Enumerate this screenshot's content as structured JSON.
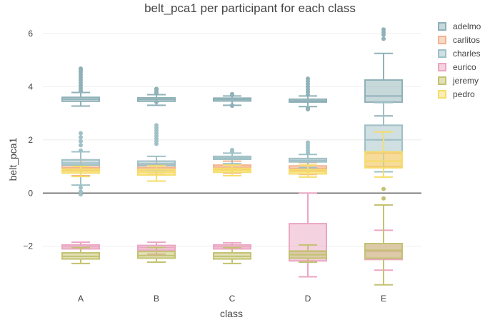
{
  "chart_data": {
    "type": "box",
    "title": "belt_pca1 per participant for each class",
    "xlabel": "class",
    "ylabel": "belt_pca1",
    "categories": [
      "A",
      "B",
      "C",
      "D",
      "E"
    ],
    "ylim": [
      -3.7,
      6.4
    ],
    "yticks": [
      -2,
      0,
      2,
      4,
      6
    ],
    "ytick_labels": [
      "−2",
      "0",
      "2",
      "4",
      "6"
    ],
    "grid": true,
    "zero_line": true,
    "legend_position": "top-right",
    "series": [
      {
        "name": "adelmo",
        "color": "#8fb1b8",
        "boxes": [
          {
            "category": "A",
            "q1": 3.45,
            "median": 3.53,
            "q3": 3.6,
            "lower_whisker": 3.27,
            "upper_whisker": 3.78,
            "outliers": [
              3.85,
              3.95,
              4.05,
              4.15,
              4.25,
              4.35,
              4.45,
              4.55,
              4.62,
              4.68
            ]
          },
          {
            "category": "B",
            "q1": 3.45,
            "median": 3.52,
            "q3": 3.58,
            "lower_whisker": 3.3,
            "upper_whisker": 3.7,
            "outliers": [
              3.75,
              3.8,
              3.88,
              3.92,
              3.42
            ]
          },
          {
            "category": "C",
            "q1": 3.46,
            "median": 3.52,
            "q3": 3.57,
            "lower_whisker": 3.3,
            "upper_whisker": 3.65,
            "outliers": [
              3.68,
              3.72,
              3.3,
              3.28
            ]
          },
          {
            "category": "D",
            "q1": 3.42,
            "median": 3.47,
            "q3": 3.53,
            "lower_whisker": 3.25,
            "upper_whisker": 3.65,
            "outliers": [
              3.7,
              3.8,
              3.9,
              4.0,
              4.1,
              4.2,
              4.3,
              3.2,
              3.15
            ]
          },
          {
            "category": "E",
            "q1": 3.42,
            "median": 3.65,
            "q3": 4.25,
            "lower_whisker": 2.9,
            "upper_whisker": 5.25,
            "outliers": [
              5.8,
              5.95,
              6.05,
              6.15
            ]
          }
        ]
      },
      {
        "name": "carlitos",
        "color": "#f2b38f",
        "boxes": [
          {
            "category": "A",
            "q1": 0.85,
            "median": 0.95,
            "q3": 1.05,
            "lower_whisker": 0.65,
            "upper_whisker": 1.25,
            "outliers": []
          },
          {
            "category": "B",
            "q1": 0.85,
            "median": 0.95,
            "q3": 1.05,
            "lower_whisker": 0.7,
            "upper_whisker": 1.2,
            "outliers": []
          },
          {
            "category": "C",
            "q1": 0.9,
            "median": 0.97,
            "q3": 1.05,
            "lower_whisker": 0.75,
            "upper_whisker": 1.2,
            "outliers": []
          },
          {
            "category": "D",
            "q1": 0.85,
            "median": 0.93,
            "q3": 1.02,
            "lower_whisker": 0.7,
            "upper_whisker": 1.15,
            "outliers": []
          },
          {
            "category": "E",
            "q1": 1.0,
            "median": 1.2,
            "q3": 1.5,
            "lower_whisker": 0.8,
            "upper_whisker": 2.0,
            "outliers": []
          }
        ]
      },
      {
        "name": "charles",
        "color": "#9fc0c6",
        "boxes": [
          {
            "category": "A",
            "q1": 1.05,
            "median": 1.13,
            "q3": 1.25,
            "lower_whisker": 0.3,
            "upper_whisker": 1.55,
            "outliers": [
              1.6,
              1.8,
              1.95,
              2.1,
              2.25,
              0.2,
              0.05,
              -0.05
            ]
          },
          {
            "category": "B",
            "q1": 1.03,
            "median": 1.1,
            "q3": 1.2,
            "lower_whisker": 0.85,
            "upper_whisker": 1.38,
            "outliers": [
              1.85,
              1.95,
              2.05,
              2.15,
              2.25,
              2.35,
              2.45,
              2.55
            ]
          },
          {
            "category": "C",
            "q1": 1.27,
            "median": 1.32,
            "q3": 1.38,
            "lower_whisker": 1.1,
            "upper_whisker": 1.5,
            "outliers": [
              1.55,
              1.62
            ]
          },
          {
            "category": "D",
            "q1": 1.17,
            "median": 1.23,
            "q3": 1.3,
            "lower_whisker": 0.95,
            "upper_whisker": 1.45,
            "outliers": [
              1.5,
              1.6,
              1.7,
              1.8,
              1.9
            ]
          },
          {
            "category": "E",
            "q1": 1.55,
            "median": 2.0,
            "q3": 2.55,
            "lower_whisker": 0.8,
            "upper_whisker": 3.4,
            "outliers": []
          }
        ]
      },
      {
        "name": "eurico",
        "color": "#eaa6c2",
        "boxes": [
          {
            "category": "A",
            "q1": -2.1,
            "median": -2.02,
            "q3": -1.95,
            "lower_whisker": -2.25,
            "upper_whisker": -1.85,
            "outliers": []
          },
          {
            "category": "B",
            "q1": -2.15,
            "median": -2.05,
            "q3": -1.97,
            "lower_whisker": -2.3,
            "upper_whisker": -1.85,
            "outliers": []
          },
          {
            "category": "C",
            "q1": -2.1,
            "median": -2.02,
            "q3": -1.95,
            "lower_whisker": -2.25,
            "upper_whisker": -1.87,
            "outliers": []
          },
          {
            "category": "D",
            "q1": -2.55,
            "median": -2.2,
            "q3": -1.15,
            "lower_whisker": -3.15,
            "upper_whisker": 0.0,
            "outliers": []
          },
          {
            "category": "E",
            "q1": -2.5,
            "median": -2.2,
            "q3": -1.9,
            "lower_whisker": -2.9,
            "upper_whisker": -1.4,
            "outliers": []
          }
        ]
      },
      {
        "name": "jeremy",
        "color": "#c3c271",
        "boxes": [
          {
            "category": "A",
            "q1": -2.48,
            "median": -2.38,
            "q3": -2.25,
            "lower_whisker": -2.65,
            "upper_whisker": -2.05,
            "outliers": []
          },
          {
            "category": "B",
            "q1": -2.45,
            "median": -2.35,
            "q3": -2.2,
            "lower_whisker": -2.6,
            "upper_whisker": -2.05,
            "outliers": []
          },
          {
            "category": "C",
            "q1": -2.48,
            "median": -2.38,
            "q3": -2.25,
            "lower_whisker": -2.65,
            "upper_whisker": -2.05,
            "outliers": []
          },
          {
            "category": "D",
            "q1": -2.45,
            "median": -2.32,
            "q3": -2.18,
            "lower_whisker": -2.6,
            "upper_whisker": -1.95,
            "outliers": []
          },
          {
            "category": "E",
            "q1": -2.45,
            "median": -2.15,
            "q3": -1.9,
            "lower_whisker": -3.45,
            "upper_whisker": -0.45,
            "outliers": [
              -0.2,
              0.15
            ]
          }
        ]
      },
      {
        "name": "pedro",
        "color": "#f6dd6a",
        "boxes": [
          {
            "category": "A",
            "q1": 0.75,
            "median": 0.82,
            "q3": 0.9,
            "lower_whisker": 0.62,
            "upper_whisker": 1.0,
            "outliers": []
          },
          {
            "category": "B",
            "q1": 0.68,
            "median": 0.78,
            "q3": 0.88,
            "lower_whisker": 0.45,
            "upper_whisker": 1.02,
            "outliers": []
          },
          {
            "category": "C",
            "q1": 0.78,
            "median": 0.85,
            "q3": 0.93,
            "lower_whisker": 0.65,
            "upper_whisker": 1.05,
            "outliers": []
          },
          {
            "category": "D",
            "q1": 0.72,
            "median": 0.8,
            "q3": 0.88,
            "lower_whisker": 0.6,
            "upper_whisker": 1.05,
            "outliers": []
          },
          {
            "category": "E",
            "q1": 0.95,
            "median": 1.2,
            "q3": 1.55,
            "lower_whisker": 0.6,
            "upper_whisker": 2.3,
            "outliers": []
          }
        ]
      }
    ]
  }
}
